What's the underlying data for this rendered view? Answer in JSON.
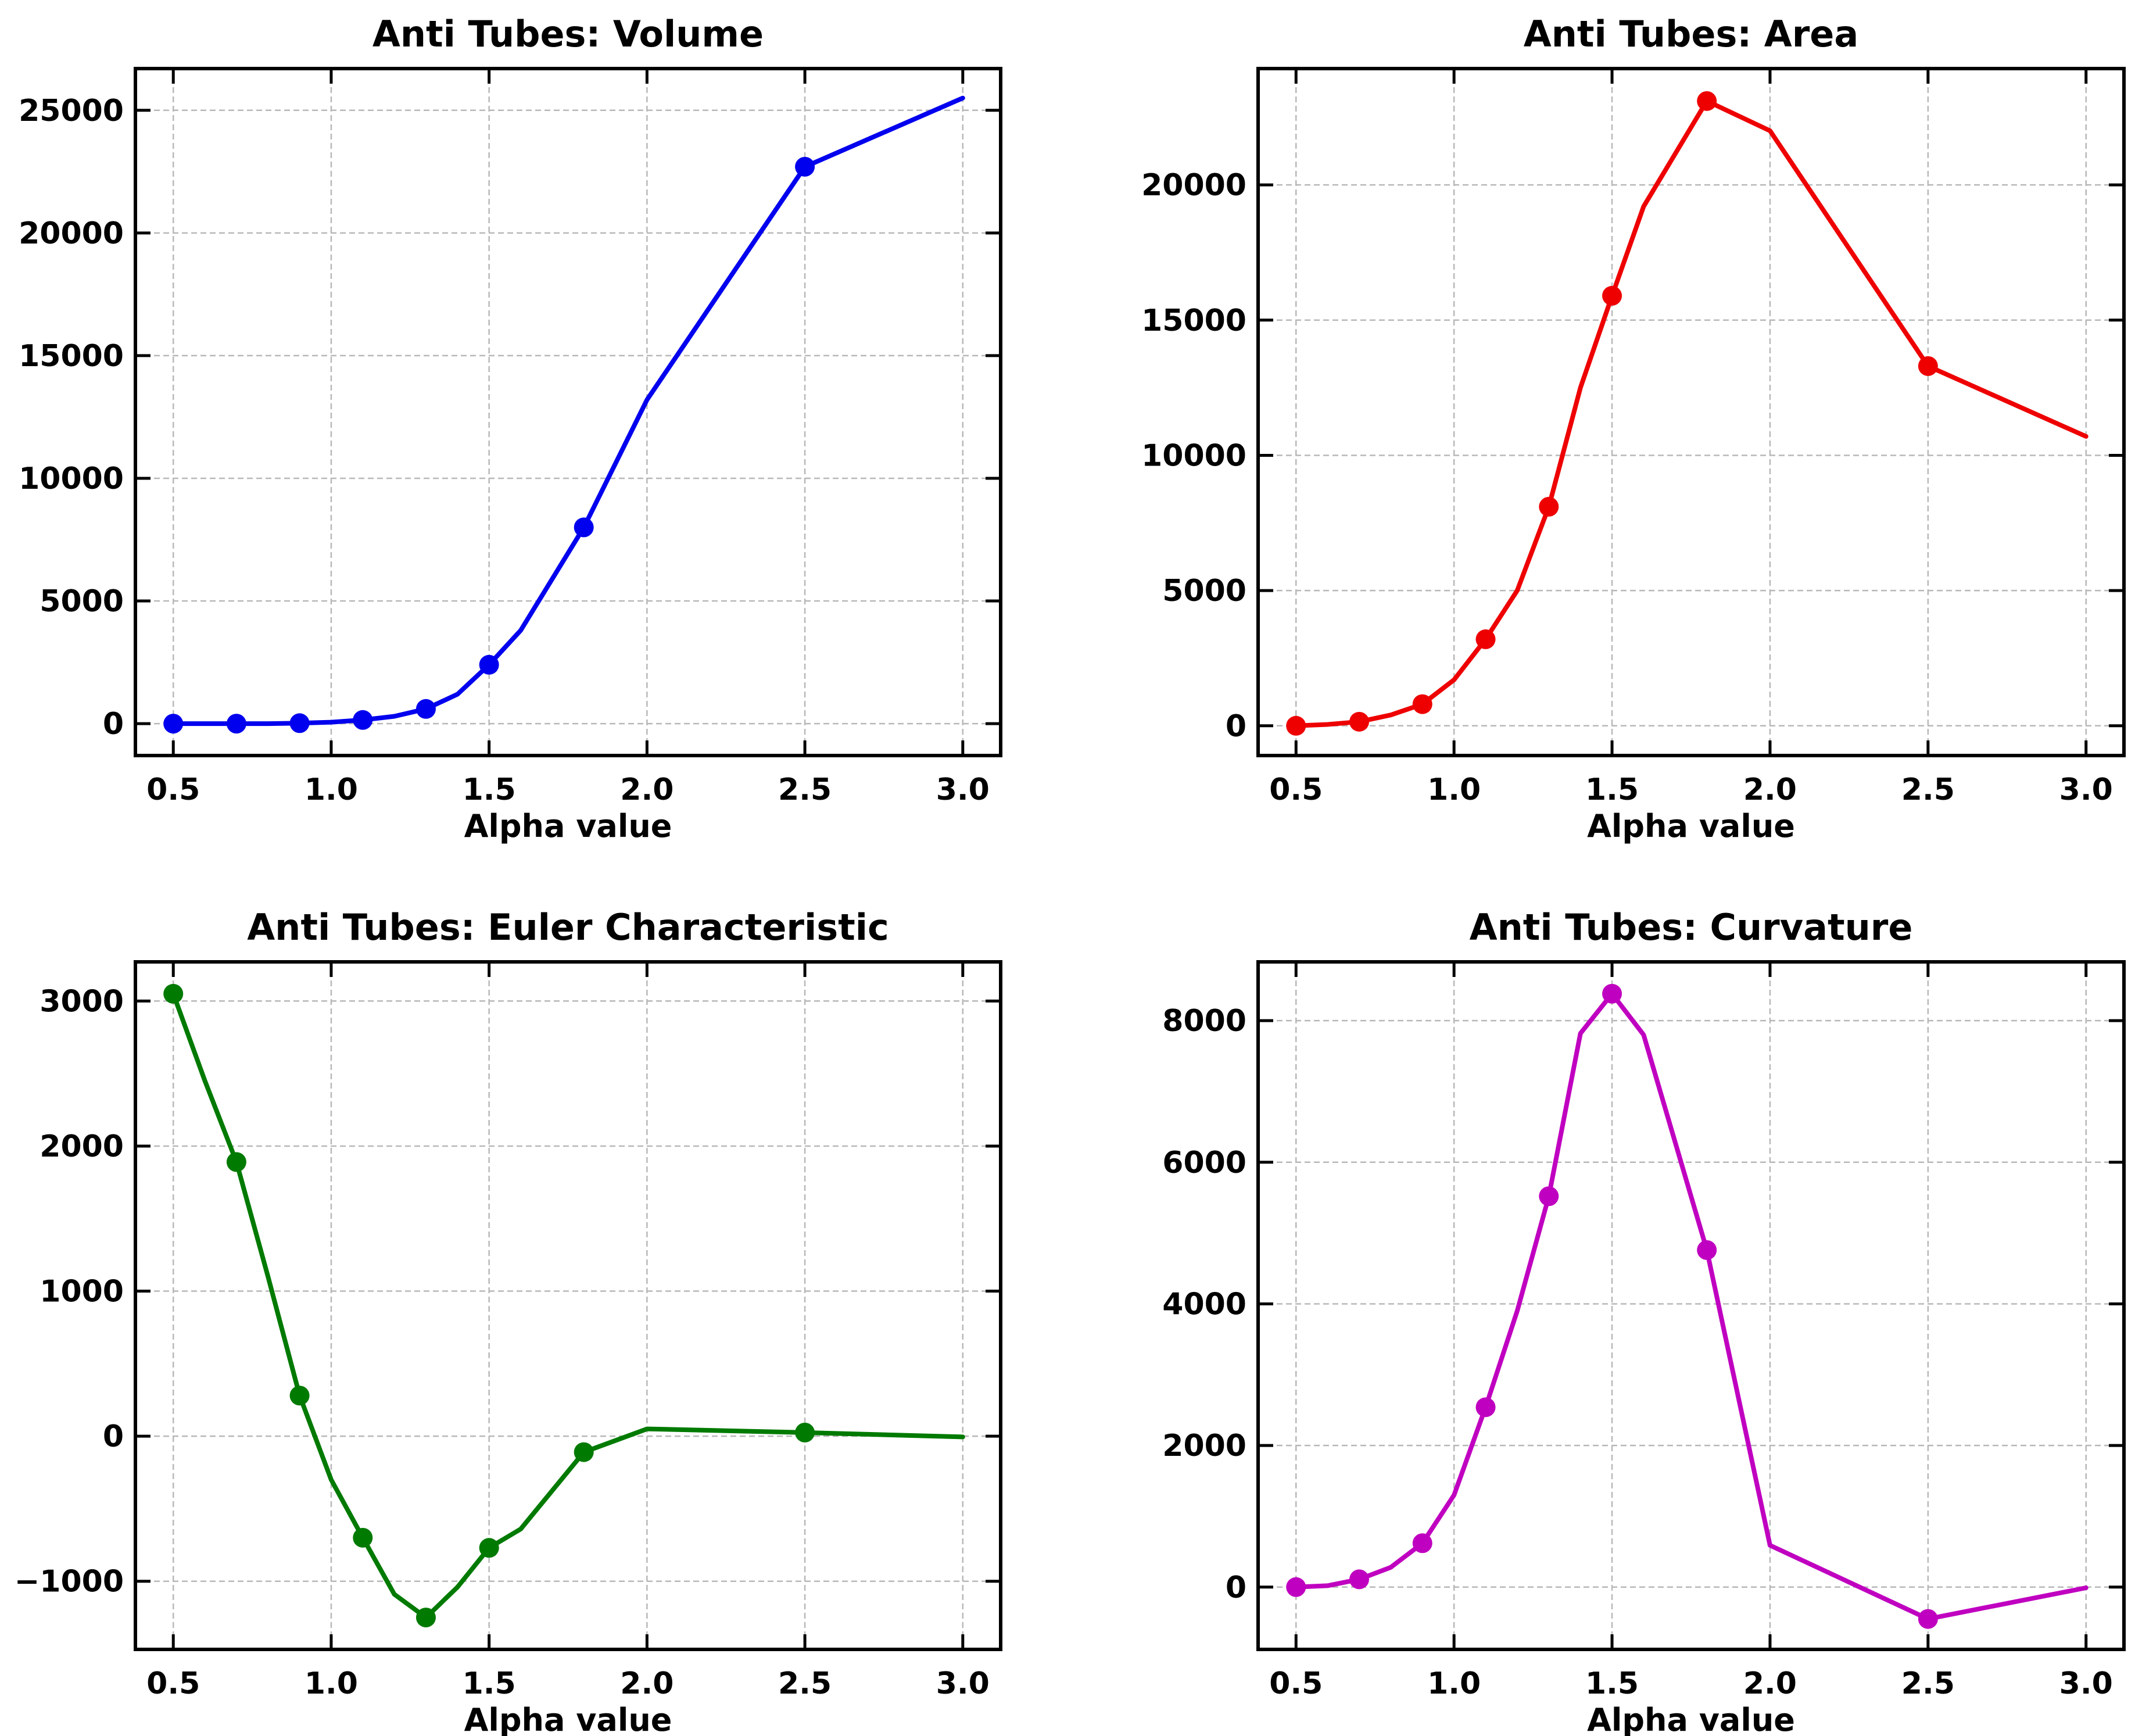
{
  "chart_data": [
    {
      "type": "line",
      "title": "Anti Tubes: Volume",
      "xlabel": "Alpha value",
      "ylabel": "",
      "color": "#0000ee",
      "xlim": [
        0.38,
        3.12
      ],
      "ylim": [
        -1300,
        26700
      ],
      "xticks": [
        0.5,
        1.0,
        1.5,
        2.0,
        2.5,
        3.0
      ],
      "xtick_labels": [
        "0.5",
        "1.0",
        "1.5",
        "2.0",
        "2.5",
        "3.0"
      ],
      "yticks": [
        0,
        5000,
        10000,
        15000,
        20000,
        25000
      ],
      "ytick_labels": [
        "0",
        "5000",
        "10000",
        "15000",
        "20000",
        "25000"
      ],
      "grid": true,
      "x": [
        0.5,
        0.6,
        0.7,
        0.8,
        0.9,
        1.0,
        1.1,
        1.2,
        1.3,
        1.4,
        1.5,
        1.6,
        1.8,
        2.0,
        2.5,
        3.0
      ],
      "y": [
        0,
        0,
        0,
        0,
        20,
        60,
        150,
        300,
        600,
        1200,
        2400,
        3800,
        8000,
        13200,
        22700,
        25500
      ],
      "marker_x": [
        0.5,
        0.7,
        0.9,
        1.1,
        1.3,
        1.5,
        1.8,
        2.5
      ],
      "marker_y": [
        0,
        0,
        20,
        150,
        600,
        2400,
        8000,
        22700
      ]
    },
    {
      "type": "line",
      "title": "Anti Tubes: Area",
      "xlabel": "Alpha value",
      "ylabel": "",
      "color": "#ee0000",
      "xlim": [
        0.38,
        3.12
      ],
      "ylim": [
        -1100,
        24300
      ],
      "xticks": [
        0.5,
        1.0,
        1.5,
        2.0,
        2.5,
        3.0
      ],
      "xtick_labels": [
        "0.5",
        "1.0",
        "1.5",
        "2.0",
        "2.5",
        "3.0"
      ],
      "yticks": [
        0,
        5000,
        10000,
        15000,
        20000
      ],
      "ytick_labels": [
        "0",
        "5000",
        "10000",
        "15000",
        "20000"
      ],
      "grid": true,
      "x": [
        0.5,
        0.6,
        0.7,
        0.8,
        0.9,
        1.0,
        1.1,
        1.2,
        1.3,
        1.4,
        1.5,
        1.6,
        1.8,
        2.0,
        2.5,
        3.0
      ],
      "y": [
        0,
        50,
        150,
        400,
        800,
        1700,
        3200,
        5000,
        8100,
        12500,
        15900,
        19200,
        23100,
        22000,
        13300,
        10700
      ],
      "marker_x": [
        0.5,
        0.7,
        0.9,
        1.1,
        1.3,
        1.5,
        1.8,
        2.5
      ],
      "marker_y": [
        0,
        150,
        800,
        3200,
        8100,
        15900,
        23100,
        13300
      ]
    },
    {
      "type": "line",
      "title": "Anti Tubes: Euler Characteristic",
      "xlabel": "Alpha value",
      "ylabel": "",
      "color": "#007a00",
      "xlim": [
        0.38,
        3.12
      ],
      "ylim": [
        -1470,
        3270
      ],
      "xticks": [
        0.5,
        1.0,
        1.5,
        2.0,
        2.5,
        3.0
      ],
      "xtick_labels": [
        "0.5",
        "1.0",
        "1.5",
        "2.0",
        "2.5",
        "3.0"
      ],
      "yticks": [
        -1000,
        0,
        1000,
        2000,
        3000
      ],
      "ytick_labels": [
        "−1000",
        "0",
        "1000",
        "2000",
        "3000"
      ],
      "grid": true,
      "x": [
        0.5,
        0.6,
        0.7,
        0.8,
        0.9,
        1.0,
        1.1,
        1.2,
        1.3,
        1.4,
        1.5,
        1.6,
        1.8,
        2.0,
        2.5,
        3.0
      ],
      "y": [
        3050,
        2450,
        1890,
        1100,
        280,
        -300,
        -700,
        -1090,
        -1250,
        -1040,
        -770,
        -640,
        -110,
        50,
        25,
        -5
      ],
      "marker_x": [
        0.5,
        0.7,
        0.9,
        1.1,
        1.3,
        1.5,
        1.8,
        2.5
      ],
      "marker_y": [
        3050,
        1890,
        280,
        -700,
        -1250,
        -770,
        -110,
        25
      ]
    },
    {
      "type": "line",
      "title": "Anti Tubes: Curvature",
      "xlabel": "Alpha value",
      "ylabel": "",
      "color": "#c000c0",
      "xlim": [
        0.38,
        3.12
      ],
      "ylim": [
        -880,
        8830
      ],
      "xticks": [
        0.5,
        1.0,
        1.5,
        2.0,
        2.5,
        3.0
      ],
      "xtick_labels": [
        "0.5",
        "1.0",
        "1.5",
        "2.0",
        "2.5",
        "3.0"
      ],
      "yticks": [
        0,
        2000,
        4000,
        6000,
        8000
      ],
      "ytick_labels": [
        "0",
        "2000",
        "4000",
        "6000",
        "8000"
      ],
      "grid": true,
      "x": [
        0.5,
        0.6,
        0.7,
        0.8,
        0.9,
        1.0,
        1.1,
        1.2,
        1.3,
        1.4,
        1.5,
        1.6,
        1.8,
        2.0,
        2.5,
        3.0
      ],
      "y": [
        0,
        20,
        110,
        280,
        620,
        1300,
        2540,
        3900,
        5520,
        7820,
        8380,
        7800,
        4760,
        590,
        -450,
        -10
      ],
      "marker_x": [
        0.5,
        0.7,
        0.9,
        1.1,
        1.3,
        1.5,
        1.8,
        2.5
      ],
      "marker_y": [
        0,
        110,
        620,
        2540,
        5520,
        8380,
        4760,
        -450
      ]
    }
  ]
}
